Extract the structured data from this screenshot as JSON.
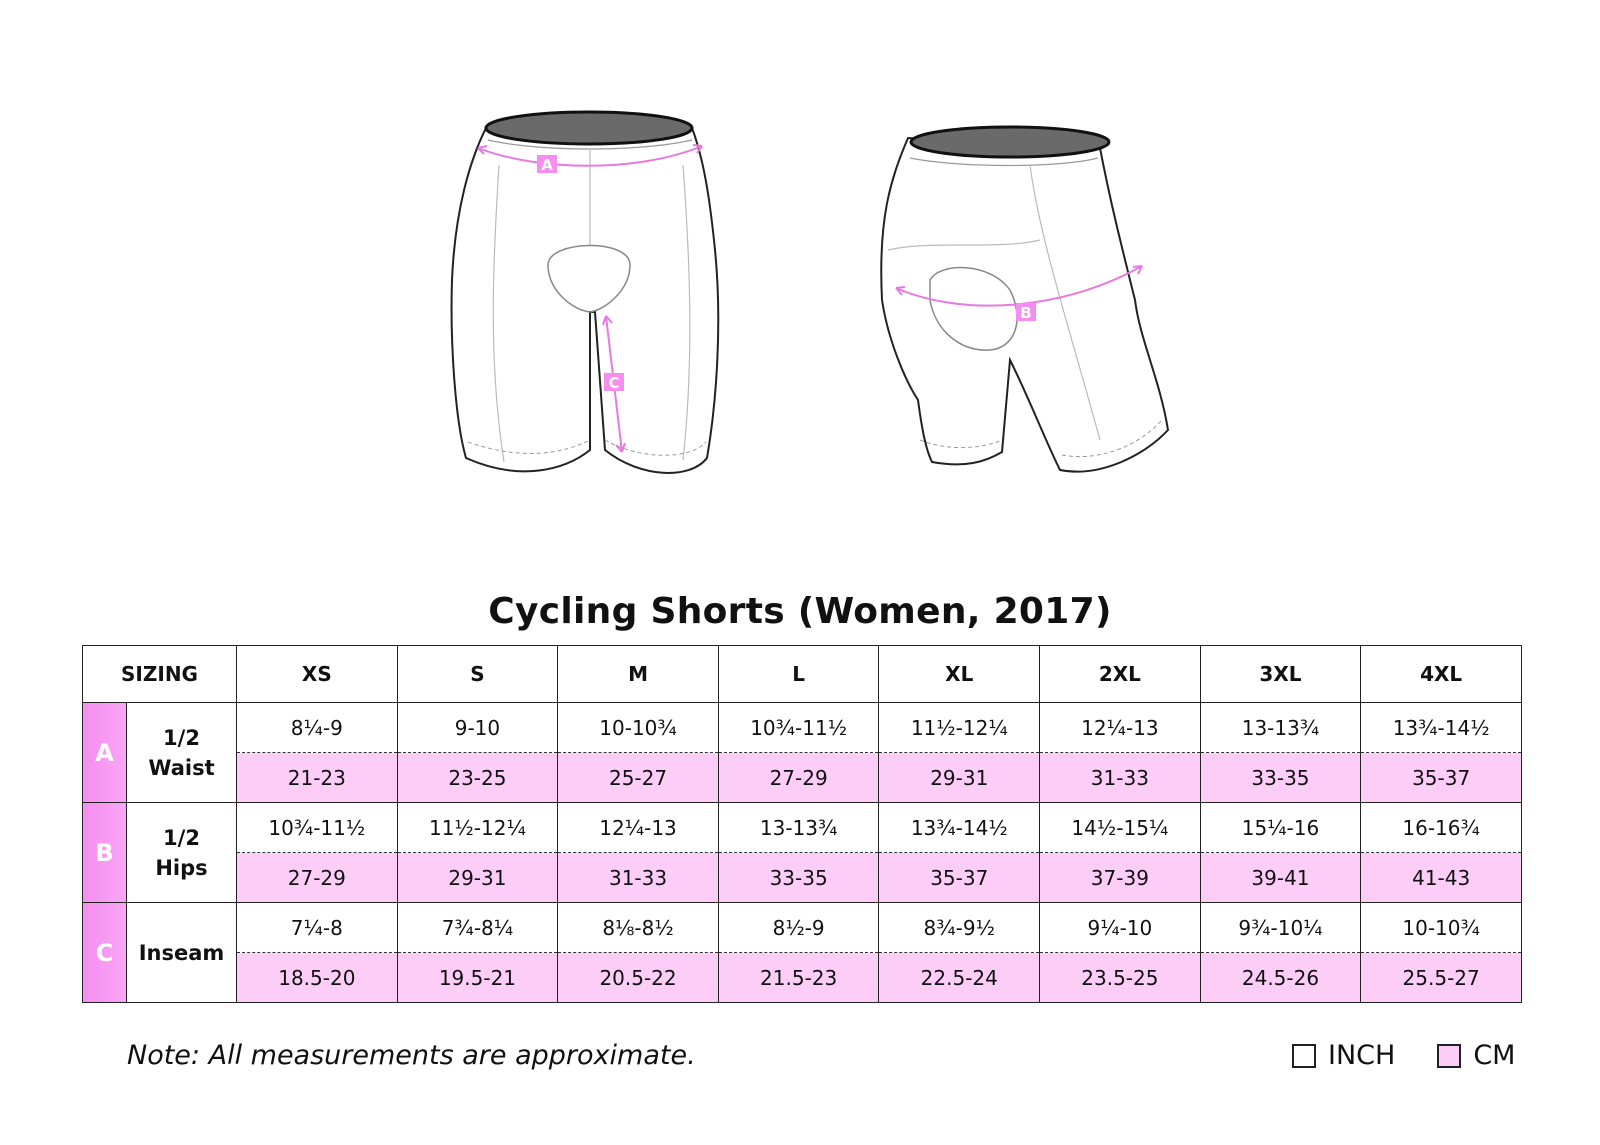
{
  "title": "Cycling Shorts (Women, 2017)",
  "diagram_markers": {
    "a": "A",
    "b": "B",
    "c": "C"
  },
  "table": {
    "header_label": "SIZING",
    "sizes": [
      "XS",
      "S",
      "M",
      "L",
      "XL",
      "2XL",
      "3XL",
      "4XL"
    ],
    "rows": [
      {
        "letter": "A",
        "label_line1": "1/2",
        "label_line2": "Waist",
        "inch": [
          "8¼-9",
          "9-10",
          "10-10¾",
          "10¾-11½",
          "11½-12¼",
          "12¼-13",
          "13-13¾",
          "13¾-14½"
        ],
        "cm": [
          "21-23",
          "23-25",
          "25-27",
          "27-29",
          "29-31",
          "31-33",
          "33-35",
          "35-37"
        ]
      },
      {
        "letter": "B",
        "label_line1": "1/2",
        "label_line2": "Hips",
        "inch": [
          "10¾-11½",
          "11½-12¼",
          "12¼-13",
          "13-13¾",
          "13¾-14½",
          "14½-15¼",
          "15¼-16",
          "16-16¾"
        ],
        "cm": [
          "27-29",
          "29-31",
          "31-33",
          "33-35",
          "35-37",
          "37-39",
          "39-41",
          "41-43"
        ]
      },
      {
        "letter": "C",
        "label_line1": "Inseam",
        "label_line2": "",
        "inch": [
          "7¼-8",
          "7¾-8¼",
          "8⅛-8½",
          "8½-9",
          "8¾-9½",
          "9¼-10",
          "9¾-10¼",
          "10-10¾"
        ],
        "cm": [
          "18.5-20",
          "19.5-21",
          "20.5-22",
          "21.5-23",
          "22.5-24",
          "23.5-25",
          "24.5-26",
          "25.5-27"
        ]
      }
    ]
  },
  "note": "Note: All measurements are approximate.",
  "legend": {
    "inch": "INCH",
    "cm": "CM"
  },
  "colors": {
    "cm_fill": "#fbcdf7",
    "accent": "#f58ef0",
    "measure_line": "#e879e0"
  }
}
